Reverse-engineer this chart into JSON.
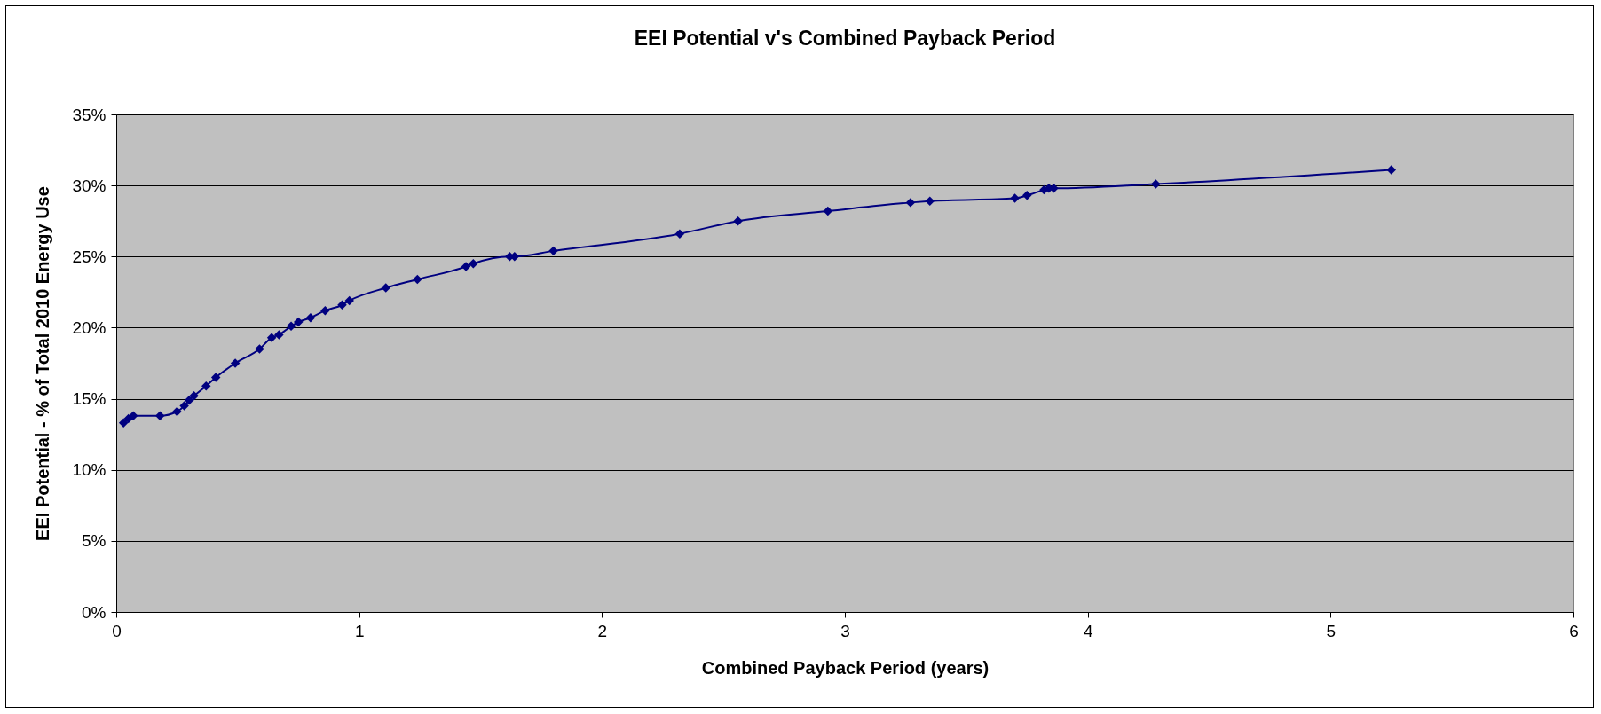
{
  "chart_data": {
    "type": "line",
    "title": "EEI Potential v's Combined Payback Period",
    "xlabel": "Combined Payback Period (years)",
    "ylabel": "EEI Potential - % of Total 2010 Energy Use",
    "x": [
      0.03,
      0.05,
      0.07,
      0.18,
      0.25,
      0.28,
      0.3,
      0.32,
      0.37,
      0.41,
      0.49,
      0.59,
      0.64,
      0.67,
      0.72,
      0.75,
      0.8,
      0.86,
      0.93,
      0.96,
      1.11,
      1.24,
      1.44,
      1.47,
      1.62,
      1.64,
      1.8,
      2.32,
      2.56,
      2.93,
      3.27,
      3.35,
      3.7,
      3.75,
      3.82,
      3.84,
      3.86,
      4.28,
      5.25
    ],
    "series": [
      {
        "color": "#000080",
        "values": [
          13.3,
          13.6,
          13.8,
          13.8,
          14.1,
          14.5,
          14.9,
          15.2,
          15.9,
          16.5,
          17.5,
          18.5,
          19.3,
          19.5,
          20.1,
          20.4,
          20.7,
          21.2,
          21.6,
          21.9,
          22.8,
          23.4,
          24.3,
          24.5,
          25.0,
          25.0,
          25.4,
          26.6,
          27.5,
          28.2,
          28.8,
          28.9,
          29.1,
          29.3,
          29.7,
          29.8,
          29.8,
          30.1,
          31.1
        ]
      }
    ],
    "xlim": [
      0,
      6
    ],
    "xticks": [
      0,
      1,
      2,
      3,
      4,
      5,
      6
    ],
    "ylim": [
      0,
      35
    ],
    "yticks": [
      {
        "value": 0,
        "label": "0%"
      },
      {
        "value": 5,
        "label": "5%"
      },
      {
        "value": 10,
        "label": "10%"
      },
      {
        "value": 15,
        "label": "15%"
      },
      {
        "value": 20,
        "label": "20%"
      },
      {
        "value": 25,
        "label": "25%"
      },
      {
        "value": 30,
        "label": "30%"
      },
      {
        "value": 35,
        "label": "35%"
      }
    ],
    "grid": "y",
    "marker": "diamond",
    "line_style": "solid",
    "legend": false
  }
}
